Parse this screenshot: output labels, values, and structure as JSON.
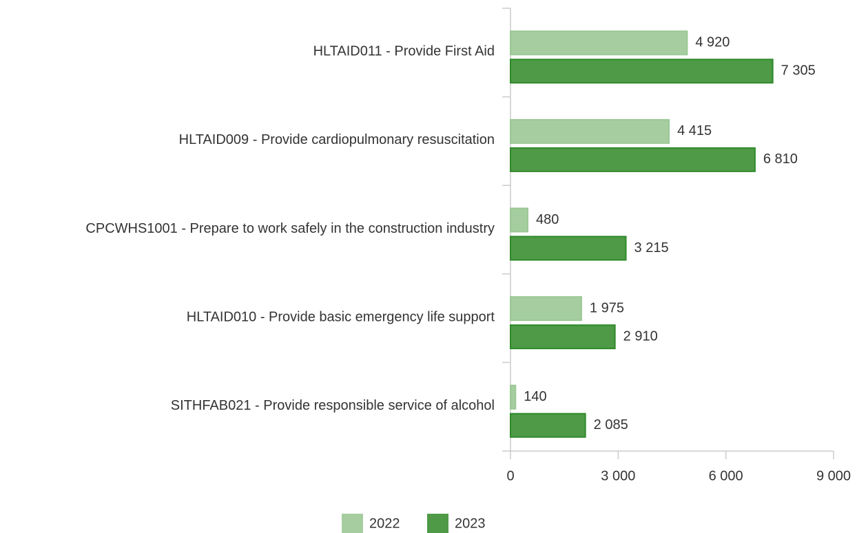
{
  "chart_data": {
    "type": "bar",
    "orientation": "horizontal",
    "categories": [
      "HLTAID011 - Provide First Aid",
      "HLTAID009 - Provide cardiopulmonary resuscitation",
      "CPCWHS1001 - Prepare to work safely in the construction industry",
      "HLTAID010 - Provide basic emergency life support",
      "SITHFAB021 - Provide responsible service of alcohol"
    ],
    "series": [
      {
        "name": "2022",
        "color": "#a5cd9f",
        "values": [
          4920,
          4415,
          480,
          1975,
          140
        ],
        "value_labels": [
          "4 920",
          "4 415",
          "480",
          "1 975",
          "140"
        ]
      },
      {
        "name": "2023",
        "color": "#4e9a46",
        "values": [
          7305,
          6810,
          3215,
          2910,
          2085
        ],
        "value_labels": [
          "7 305",
          "6 810",
          "3 215",
          "2 910",
          "2 085"
        ]
      }
    ],
    "xlim": [
      0,
      9000
    ],
    "xticks": [
      0,
      {
        "value": 3000,
        "label": "3 000"
      },
      {
        "value": 6000,
        "label": "6 000"
      },
      {
        "value": 9000,
        "label": "9 000"
      }
    ],
    "legend": "bottom"
  }
}
